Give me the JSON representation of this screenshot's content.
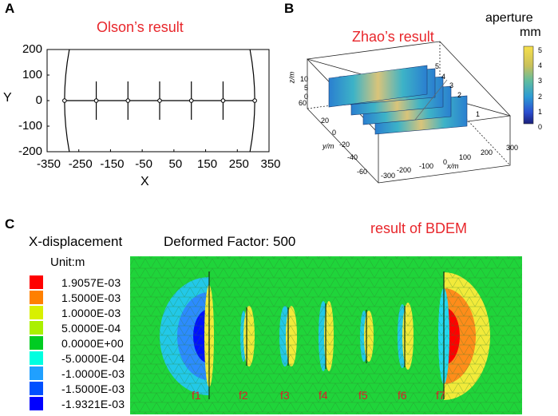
{
  "panels": {
    "a": {
      "label": "A",
      "title": "Olson’s result"
    },
    "b": {
      "label": "B",
      "title": "Zhao’s result"
    },
    "c": {
      "label": "C",
      "title": "result of BDEM"
    }
  },
  "chart_data": [
    {
      "type": "scatter",
      "title": "Olson’s result",
      "xlabel": "X",
      "ylabel": "Y",
      "xlim": [
        -350,
        350
      ],
      "ylim": [
        -200,
        200
      ],
      "xticks": [
        -350,
        -250,
        -150,
        -50,
        50,
        150,
        250,
        350
      ],
      "yticks": [
        200,
        100,
        0,
        -100,
        -200
      ],
      "xtick_labels": [
        "-350",
        "-250",
        "-150",
        "-50",
        "50",
        "150",
        "250",
        "350"
      ],
      "ytick_labels": [
        "200",
        "100",
        "0",
        "-100",
        "-200"
      ],
      "fracture_x": [
        -300,
        -200,
        -100,
        0,
        100,
        200,
        300
      ],
      "fracture_half_length": [
        200,
        75,
        75,
        75,
        75,
        75,
        200
      ],
      "point_y": 0
    },
    {
      "type": "heatmap",
      "title": "Zhao’s result",
      "colorbar_label": "aperture",
      "colorbar_unit": "mm",
      "colorbar_ticks": [
        "5",
        "4",
        "3",
        "2",
        "1",
        "0"
      ],
      "xlabel": "x/m",
      "ylabel": "y/m",
      "zlabel": "z/m",
      "x_ticks": [
        "-300",
        "-200",
        "-100",
        "0",
        "100",
        "200",
        "300"
      ],
      "y_ticks": [
        "-60",
        "-40",
        "-20",
        "0",
        "20",
        "40",
        "60"
      ],
      "z_ticks": [
        "10",
        "5",
        "0"
      ],
      "fracture_labels": [
        "1",
        "2",
        "3",
        "4",
        "5"
      ]
    },
    {
      "type": "heatmap",
      "title": "result of BDEM",
      "quantity": "X-displacement",
      "deformed_factor_text": "Deformed Factor: 500",
      "unit_text": "Unit:m",
      "legend": [
        {
          "value": "1.9057E-03",
          "color": "#ff0000"
        },
        {
          "value": "1.5000E-03",
          "color": "#ff8000"
        },
        {
          "value": "1.0000E-03",
          "color": "#d8f000"
        },
        {
          "value": "5.0000E-04",
          "color": "#aaf000"
        },
        {
          "value": "0.0000E+00",
          "color": "#00cc22"
        },
        {
          "value": "-5.0000E-04",
          "color": "#00ffe0"
        },
        {
          "value": "-1.0000E-03",
          "color": "#20a0ff"
        },
        {
          "value": "-1.5000E-03",
          "color": "#0050ff"
        },
        {
          "value": "-1.9321E-03",
          "color": "#0000ff"
        }
      ],
      "fractures": [
        "f1",
        "f2",
        "f3",
        "f4",
        "f5",
        "f6",
        "f7"
      ]
    }
  ]
}
